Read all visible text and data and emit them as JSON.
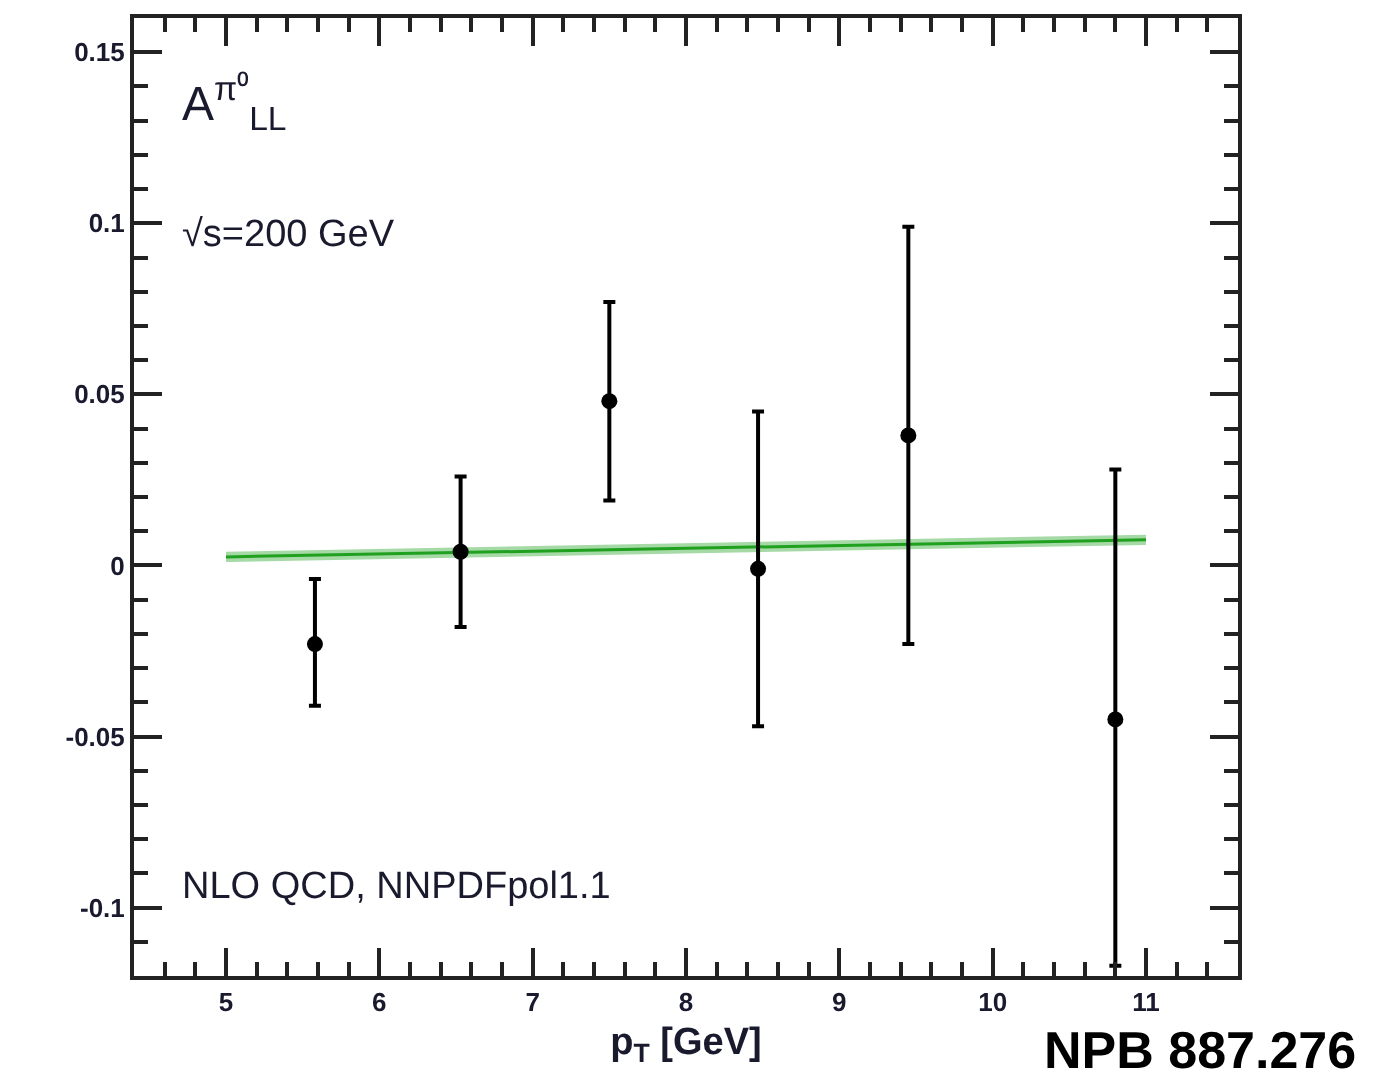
{
  "chart_data": {
    "type": "scatter",
    "xlabel": "p$_{T}$ [GeV]",
    "annotations": [
      "A$^{π⁰}$$_{LL}$",
      "√s=200 GeV",
      "NLO QCD, NNPDFpol1.1",
      "NPB 887.276"
    ],
    "series": [
      {
        "type": "line",
        "color": "#1fa01f",
        "x": [
          5,
          11
        ],
        "values": [
          0.0025,
          0.0075
        ],
        "lower": [
          0.001,
          0.006
        ],
        "upper": [
          0.004,
          0.009
        ]
      },
      {
        "color": "#000000",
        "marker": "circle",
        "x": [
          5.58,
          6.53,
          7.5,
          8.47,
          9.45,
          10.8
        ],
        "values": [
          -0.023,
          0.004,
          0.048,
          -0.001,
          0.038,
          -0.045
        ],
        "errors": [
          [
            -0.041,
            -0.004
          ],
          [
            -0.018,
            0.026
          ],
          [
            0.019,
            0.077
          ],
          [
            -0.047,
            0.045
          ],
          [
            -0.023,
            0.099
          ],
          [
            -0.117,
            0.028
          ]
        ]
      }
    ],
    "xlim": [
      4.4,
      11.6
    ],
    "xticks": [
      5,
      6,
      7,
      8,
      9,
      10,
      11
    ],
    "ylim": [
      -0.12,
      0.16
    ],
    "yticks": [
      -0.1,
      -0.05,
      0,
      0.05,
      0.1,
      0.15
    ],
    "grid": false
  }
}
